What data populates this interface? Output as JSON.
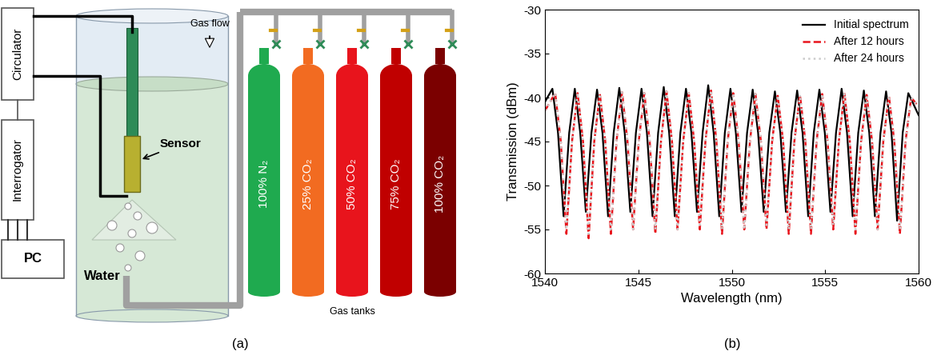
{
  "diagram": {
    "panel_labels": [
      "(a)",
      "(b)"
    ],
    "boxes": [
      "Circulator",
      "Interrogator",
      "PC"
    ],
    "water": "Water",
    "sensor": "Sensor",
    "gas_flow": "Gas flow",
    "gas_tanks": {
      "title": "Gas tanks",
      "tanks": [
        {
          "label": "100% N₂",
          "color": "#1faa4f"
        },
        {
          "label": "25% CO₂",
          "color": "#f26b21"
        },
        {
          "label": "50% CO₂",
          "color": "#e8141c"
        },
        {
          "label": "75% CO₂",
          "color": "#c00000"
        },
        {
          "label": "100% CO₂",
          "color": "#7b0000"
        }
      ]
    }
  },
  "chart_data": {
    "type": "line",
    "x_label": "Wavelength (nm)",
    "y_label": "Transmission (dBm)",
    "xlim": [
      1540,
      1560
    ],
    "xticks": [
      1540,
      1545,
      1550,
      1555,
      1560
    ],
    "ylim": [
      -60,
      -30
    ],
    "yticks": [
      -60,
      -55,
      -50,
      -45,
      -40,
      -35,
      -30
    ],
    "legend": "upper right",
    "series": [
      {
        "name": "Initial spectrum",
        "color": "#000000",
        "line_style": "solid",
        "x": [
          1540.0,
          1540.4,
          1540.7,
          1541.0,
          1541.3,
          1541.6,
          1541.89,
          1542.19,
          1542.49,
          1542.79,
          1543.08,
          1543.38,
          1543.68,
          1543.98,
          1544.27,
          1544.57,
          1544.87,
          1545.17,
          1545.46,
          1545.76,
          1546.06,
          1546.36,
          1546.65,
          1546.95,
          1547.25,
          1547.55,
          1547.84,
          1548.14,
          1548.44,
          1548.74,
          1549.03,
          1549.33,
          1549.63,
          1549.93,
          1550.22,
          1550.52,
          1550.82,
          1551.12,
          1551.41,
          1551.71,
          1552.01,
          1552.31,
          1552.6,
          1552.9,
          1553.2,
          1553.5,
          1553.79,
          1554.09,
          1554.39,
          1554.69,
          1554.98,
          1555.28,
          1555.58,
          1555.88,
          1556.17,
          1556.47,
          1556.77,
          1557.07,
          1557.36,
          1557.66,
          1557.96,
          1558.26,
          1558.55,
          1558.85,
          1559.15,
          1559.45,
          1560.0
        ],
        "values": [
          -40.5,
          -39.0,
          -44,
          -53.5,
          -44,
          -39.0,
          -44,
          -53.0,
          -44,
          -39.1,
          -44,
          -53.5,
          -44,
          -38.9,
          -44,
          -53.0,
          -44,
          -39.0,
          -44,
          -53.5,
          -44,
          -38.8,
          -44,
          -53.5,
          -44,
          -39.0,
          -44,
          -53.0,
          -44,
          -38.6,
          -44,
          -53.5,
          -44,
          -39.0,
          -44,
          -53.0,
          -44,
          -39.1,
          -44,
          -53.0,
          -44,
          -39.3,
          -44,
          -53.0,
          -44,
          -39.2,
          -44,
          -53.5,
          -44,
          -39.1,
          -44,
          -53.0,
          -44,
          -39.0,
          -44,
          -53.5,
          -44,
          -39.2,
          -44,
          -53.5,
          -44,
          -39.3,
          -44,
          -54.0,
          -44,
          -39.5,
          -42
        ]
      },
      {
        "name": "After 12 hours",
        "color": "#e8141c",
        "line_style": "dashed",
        "x": [
          1540.0,
          1540.55,
          1540.85,
          1541.15,
          1541.45,
          1541.75,
          1542.04,
          1542.34,
          1542.64,
          1542.94,
          1543.23,
          1543.53,
          1543.83,
          1544.13,
          1544.42,
          1544.72,
          1545.02,
          1545.32,
          1545.61,
          1545.91,
          1546.21,
          1546.51,
          1546.8,
          1547.1,
          1547.4,
          1547.7,
          1547.99,
          1548.29,
          1548.59,
          1548.89,
          1549.18,
          1549.48,
          1549.78,
          1550.08,
          1550.37,
          1550.67,
          1550.97,
          1551.27,
          1551.56,
          1551.86,
          1552.16,
          1552.46,
          1552.75,
          1553.05,
          1553.35,
          1553.65,
          1553.94,
          1554.24,
          1554.54,
          1554.84,
          1555.13,
          1555.43,
          1555.73,
          1556.03,
          1556.32,
          1556.62,
          1556.92,
          1557.22,
          1557.51,
          1557.81,
          1558.11,
          1558.41,
          1558.7,
          1559.0,
          1559.3,
          1559.6,
          1560.0
        ],
        "values": [
          -41.5,
          -39.5,
          -45,
          -55.5,
          -45,
          -39.5,
          -45,
          -56.0,
          -45,
          -39.6,
          -45,
          -55.5,
          -45,
          -39.4,
          -45,
          -55.0,
          -45,
          -39.5,
          -45,
          -55.5,
          -45,
          -39.3,
          -45,
          -55.0,
          -45,
          -39.5,
          -45,
          -55.0,
          -45,
          -39.2,
          -45,
          -55.5,
          -45,
          -39.5,
          -45,
          -55.0,
          -45,
          -39.6,
          -45,
          -55.0,
          -45,
          -39.8,
          -45,
          -55.5,
          -45,
          -39.7,
          -45,
          -55.5,
          -45,
          -39.6,
          -45,
          -55.0,
          -45,
          -39.5,
          -45,
          -55.5,
          -45,
          -39.7,
          -45,
          -55.0,
          -45,
          -39.8,
          -45,
          -55.5,
          -45,
          -40.0,
          -41
        ]
      },
      {
        "name": "After 24 hours",
        "color": "#cccccc",
        "line_style": "dotted",
        "x": [
          1540.0,
          1540.55,
          1540.85,
          1541.15,
          1541.45,
          1541.75,
          1542.04,
          1542.34,
          1542.64,
          1542.94,
          1543.23,
          1543.53,
          1543.83,
          1544.13,
          1544.42,
          1544.72,
          1545.02,
          1545.32,
          1545.61,
          1545.91,
          1546.21,
          1546.51,
          1546.8,
          1547.1,
          1547.4,
          1547.7,
          1547.99,
          1548.29,
          1548.59,
          1548.89,
          1549.18,
          1549.48,
          1549.78,
          1550.08,
          1550.37,
          1550.67,
          1550.97,
          1551.27,
          1551.56,
          1551.86,
          1552.16,
          1552.46,
          1552.75,
          1553.05,
          1553.35,
          1553.65,
          1553.94,
          1554.24,
          1554.54,
          1554.84,
          1555.13,
          1555.43,
          1555.73,
          1556.03,
          1556.32,
          1556.62,
          1556.92,
          1557.22,
          1557.51,
          1557.81,
          1558.11,
          1558.41,
          1558.7,
          1559.0,
          1559.3,
          1559.6,
          1560.0
        ],
        "values": [
          -41.5,
          -39.5,
          -45,
          -55.0,
          -45,
          -39.5,
          -45,
          -55.5,
          -45,
          -39.6,
          -45,
          -55.0,
          -45,
          -39.4,
          -45,
          -55.0,
          -45,
          -39.5,
          -45,
          -55.0,
          -45,
          -39.3,
          -45,
          -55.0,
          -45,
          -39.5,
          -45,
          -54.5,
          -45,
          -39.2,
          -45,
          -55.0,
          -45,
          -39.5,
          -45,
          -55.0,
          -45,
          -39.6,
          -45,
          -54.5,
          -45,
          -39.8,
          -45,
          -55.0,
          -45,
          -39.7,
          -45,
          -55.0,
          -45,
          -39.6,
          -45,
          -54.5,
          -45,
          -39.5,
          -45,
          -55.0,
          -45,
          -39.7,
          -45,
          -55.0,
          -45,
          -39.8,
          -45,
          -55.0,
          -45,
          -40.0,
          -41
        ]
      }
    ]
  }
}
